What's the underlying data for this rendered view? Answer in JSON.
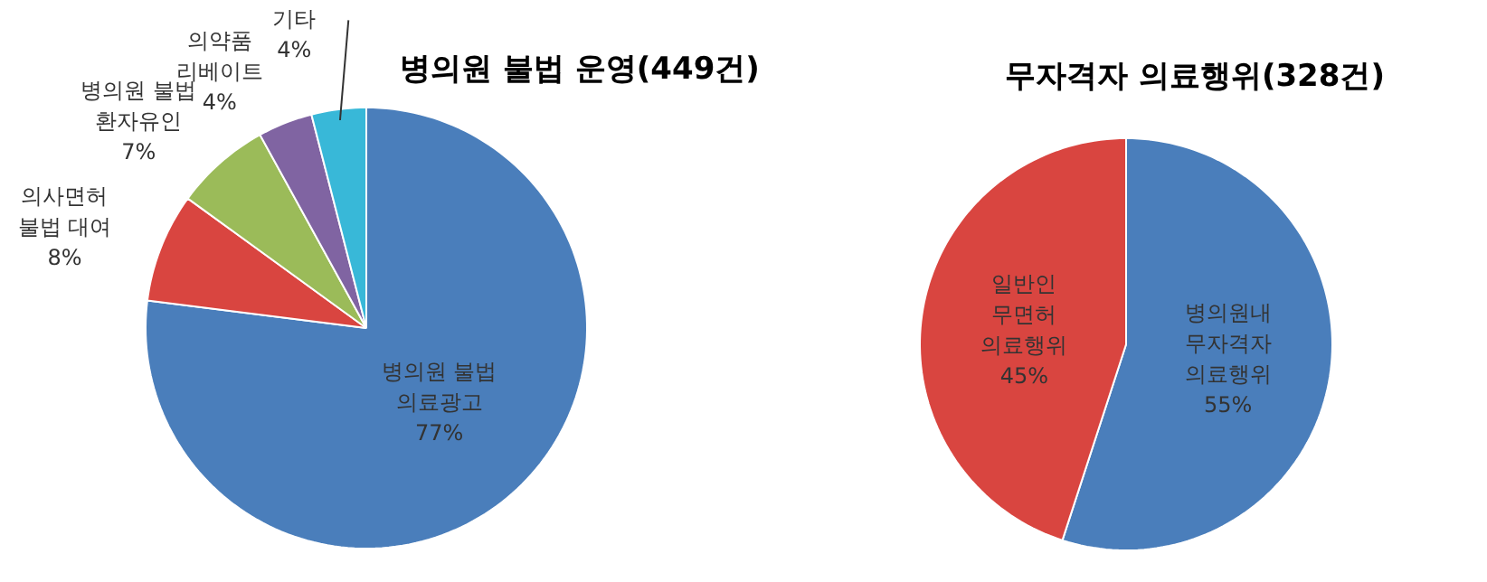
{
  "chart_data": [
    {
      "type": "pie",
      "title": "병의원 불법 운영(449건)",
      "categories": [
        "병의원 불법 의료광고",
        "의사면허 불법 대여",
        "병의원 불법 환자유인",
        "의약품 리베이트",
        "기타"
      ],
      "values": [
        77,
        8,
        7,
        4,
        4
      ],
      "value_labels": [
        "77%",
        "8%",
        "7%",
        "4%",
        "4%"
      ],
      "colors": [
        "#4a7ebb",
        "#d94540",
        "#9bbb59",
        "#8064a2",
        "#38b8d8"
      ]
    },
    {
      "type": "pie",
      "title": "무자격자 의료행위(328건)",
      "categories": [
        "병의원내 무자격자 의료행위",
        "일반인 무면허 의료행위"
      ],
      "values": [
        55,
        45
      ],
      "value_labels": [
        "55%",
        "45%"
      ],
      "colors": [
        "#4a7ebb",
        "#d94540"
      ]
    }
  ]
}
